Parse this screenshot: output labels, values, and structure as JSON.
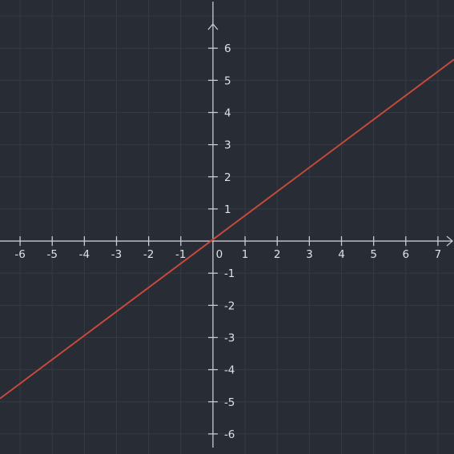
{
  "chart_data": {
    "type": "line",
    "title": "",
    "xlabel": "",
    "ylabel": "",
    "xlim": [
      -6.625,
      7.5
    ],
    "ylim": [
      -6.625,
      7.5
    ],
    "grid": true,
    "x_ticks": [
      -6,
      -5,
      -4,
      -3,
      -2,
      -1,
      0,
      1,
      2,
      3,
      4,
      5,
      6,
      7
    ],
    "y_ticks": [
      -6,
      -5,
      -4,
      -3,
      -2,
      -1,
      1,
      2,
      3,
      4,
      5,
      6
    ],
    "x_tick_labels": [
      "-6",
      "-5",
      "-4",
      "-3",
      "-2",
      "-1",
      "0",
      "1",
      "2",
      "3",
      "4",
      "5",
      "6",
      "7"
    ],
    "y_tick_labels": [
      "-6",
      "-5",
      "-4",
      "-3",
      "-2",
      "-1",
      "1",
      "2",
      "3",
      "4",
      "5",
      "6"
    ],
    "series": [
      {
        "color": "#c7483d",
        "points": [
          [
            -6.625,
            -4.9
          ],
          [
            7.5,
            5.65
          ]
        ]
      }
    ]
  },
  "colors": {
    "background": "#282c35",
    "grid": "#363a45",
    "axis": "#c7cbd1",
    "tick_label": "#dde1e6",
    "line": "#c7483d"
  }
}
